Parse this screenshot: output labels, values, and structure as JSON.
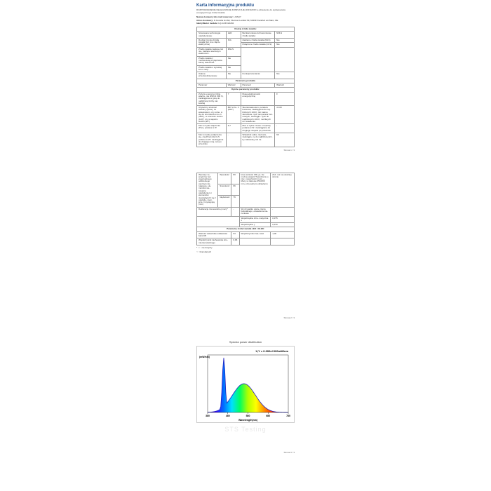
{
  "title": "Karta informacyjna produktu",
  "subtitle": "ROZPORZĄDZENIE DELEGOWANE KOMISJI (UE) 2019/2015 w odniesieniu do etykietowania energetycznego źródeł światła",
  "supplier": {
    "label": "Nazwa dostawcy lub znak towarowy:",
    "value": "LIVAQY"
  },
  "address": {
    "label": "Adres dostawcy:",
    "value": "D.Growlia GmbH, Niemser-Landstr.69, 60439 Frankfurt am Main, DE"
  },
  "model": {
    "label": "Identyfikator modelu:",
    "value": "LQ-GCFC21204"
  },
  "table1_header": "Rodzaj źródła światła:",
  "t1": {
    "r1c1": "Stosowana technologia oświetleniowa:",
    "r1c2": "LED",
    "r1c3": "Bezkierunkowe lub kierunkowe źródło światła:",
    "r1c4": "NDLS",
    "r2c1": "Rodzaj trzonka źródła światła (lub inne złącze elektryczne)",
    "r2c2": "N/A",
    "r2c3": "Zasilanie źródła światła (MLS)",
    "r2c4": "Nie",
    "r3c1": "Źródło światła zasilane lub nie- zasilane sieciowym elektronicz-",
    "r3c2": "MNLS",
    "r3c3": "Połączone źródło światła (CLS):",
    "r3c4": "Nie",
    "r4c1": "Źródło światła z możliwością przyłączania barwy świecenia:",
    "r4c2": "Nie",
    "r5c1": "Źródło światła o wysokiej lumi- nacji:",
    "r5c2": "Nie",
    "r6c1": "Osłona przeciwolśnieniowa:",
    "r6c2": "Nie",
    "r6c3": "Funkcja ścieniania:",
    "r6c4": "Nie"
  },
  "params_header": "Parametry produktu",
  "p1": {
    "c1": "Parametr",
    "c2": "Wartość",
    "c3": "Parametr",
    "c4": "Wartość"
  },
  "general_header": "Ogólne parametry produktu:",
  "g1": {
    "c1": "Zużycie energii w trybie włącze- nia (kWh/1 000 h), zaokrąglone w górę do najbliższej liczby cał- kowitej",
    "c2": "7",
    "c3": "Klasa efektywności energetycznej",
    "c4": "F"
  },
  "g2": {
    "c1": "Użyteczny strumień świetlny (φuse), ze wskazaniem, czy odno- si się do strumienia w ku- li (360°), w szerokim stożku (120°) czy w wąskim stożku (90°)",
    "c2": "807 w Ku- li (360°)",
    "c3": "Skorelowana tem- peratura barwowa, zaokrąglona do naj- bliższych 100 K, lub zakres skorelowa- nych temperatur bar- wowych, zaokrąglo- nych do najbliższych 100 K, możliwych do ustawienia",
    "c4": "4 100"
  },
  "g3": {
    "c1": "Moc w trybie włączenia (Pon), podana w W",
    "c2": "6,7",
    "c3": "Moc w trybie czuwa- nia (Psb), podana w W i zaokrąglona do drugiego miejsca po przecinku",
    "c4": "-"
  },
  "g4": {
    "c1": "Moc w trybie potłączenia się- cią (Pnet) dla CLS podana w W i zaokrąglona do drugiego miej- sca po przecinku",
    "c2": "-",
    "c3": "Wskaźnik odda- nia barw, zaokrąglo- ny do najbliższej licz- by całkowitej, lub za-",
    "c4": "90"
  },
  "page1num": "Strona 1 / 3",
  "t2": {
    "r1c1": "Wymiary ze- wnętrzne bez ewentualnego oddzielnego osprzętu ste- rującego, ele- mentów ste- rowania oświetleniem i elementów niewiążących się z oświetle- niem, jeże- li występują (mm)",
    "r1_h": "Wysokość",
    "r1_hv": "80",
    "r1_s": "Szerokość",
    "r1_sv": "96",
    "r1_g": "Głębokość",
    "r1_gv": "76",
    "r1c3": "kres wartości CRI, ja- kie można ustawić\nTwierdzenie o rów- noważności mocy — Mocy w zakresie 350-800 mm, przy pełnym obciążeniu",
    "r1c4": "Zob. not na ostatniej stronie",
    "r2c1": "Deklaracja równoważnej mocy*",
    "r2c2": "-",
    "r2c3": "W przypadku oświe- tlenia bazetalnego, oświetlenie kie- runkowe",
    "r2c4": "-",
    "r3c3": "Współrzędna chro- matyczna x",
    "r3c4": "0,375",
    "r4c3": "Współrzędna y",
    "r4c4": "0,370"
  },
  "led_header": "Parametry źródeł światła LED i OLED:",
  "led1": {
    "c1": "Wartość wskaźnika oddawania barw R9",
    "c2": "53",
    "c3": "Współczynnik trwa- łości",
    "c4": "1,00"
  },
  "led2": {
    "c1": "Współczynnik zachowania stru- mienia świetlnego",
    "c2": "0,96"
  },
  "notes1": "* '--' : nie dotyczy",
  "notes2": "'-' : brak danych",
  "page2num": "Strona 2 / 3",
  "chart": {
    "title": "Spectra power distribution",
    "formula": "X,Y = 0.000e+000mW/nm",
    "ylabel": "(mW/nm)",
    "xlabel": "Wavelength(nm)",
    "xticks": [
      "380",
      "480",
      "580",
      "680",
      "780"
    ],
    "spectrum_colors": [
      "#6a00b0",
      "#3a00ff",
      "#0070ff",
      "#00e0ff",
      "#00ff60",
      "#b0ff00",
      "#ffff00",
      "#ff9000",
      "#ff3000",
      "#c00000",
      "#800000"
    ],
    "curve_color": "#2020c0",
    "curve_peak1_x": 0.2,
    "curve_peak1_y": 0.95,
    "curve_peak2_x": 0.45,
    "curve_peak2_y": 0.5
  },
  "watermark": "STS Testing",
  "page3num": "Strona 3 / 3"
}
